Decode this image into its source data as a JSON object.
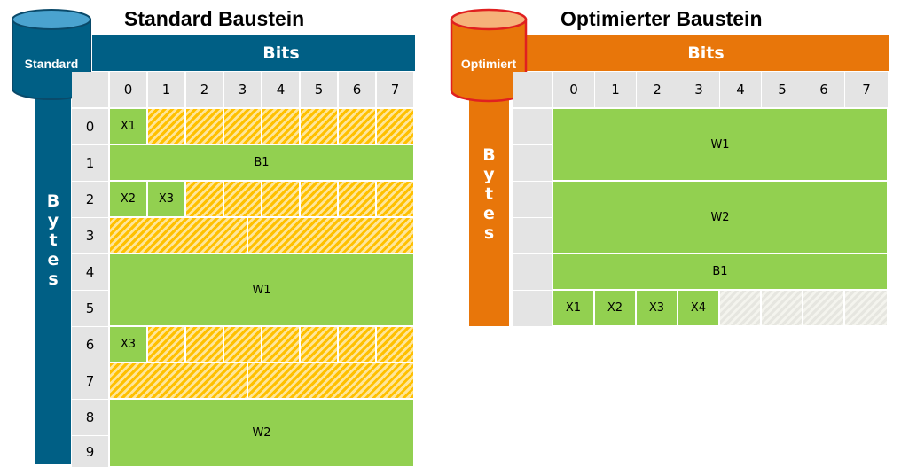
{
  "standard": {
    "title": "Standard Baustein",
    "cylinder_label": "Standard",
    "bits_label": "Bits",
    "bytes_letters": [
      "B",
      "y",
      "t",
      "e",
      "s"
    ],
    "bit_numbers": [
      "0",
      "1",
      "2",
      "3",
      "4",
      "5",
      "6",
      "7"
    ],
    "byte_numbers": [
      "0",
      "1",
      "2",
      "3",
      "4",
      "5",
      "6",
      "7",
      "8",
      "9"
    ],
    "cells": {
      "x1": "X1",
      "b1": "B1",
      "x2": "X2",
      "x3_row2": "X3",
      "w1": "W1",
      "x3_row6": "X3",
      "w2": "W2"
    },
    "colors": {
      "bar": "#005f85",
      "cylinder_top": "#4aa3cf"
    }
  },
  "optimiert": {
    "title": "Optimierter Baustein",
    "cylinder_label": "Optimiert",
    "bits_label": "Bits",
    "bytes_letters": [
      "B",
      "y",
      "t",
      "e",
      "s"
    ],
    "bit_numbers": [
      "0",
      "1",
      "2",
      "3",
      "4",
      "5",
      "6",
      "7"
    ],
    "cells": {
      "w1": "W1",
      "w2": "W2",
      "b1": "B1",
      "x1": "X1",
      "x2": "X2",
      "x3": "X3",
      "x4": "X4"
    },
    "colors": {
      "bar": "#e8760a",
      "cylinder_top": "#f6b27a",
      "cylinder_border": "#e02020"
    }
  },
  "colors": {
    "green": "#92d050",
    "hatch": "#ffc000",
    "grey": "#e4e4e4"
  }
}
